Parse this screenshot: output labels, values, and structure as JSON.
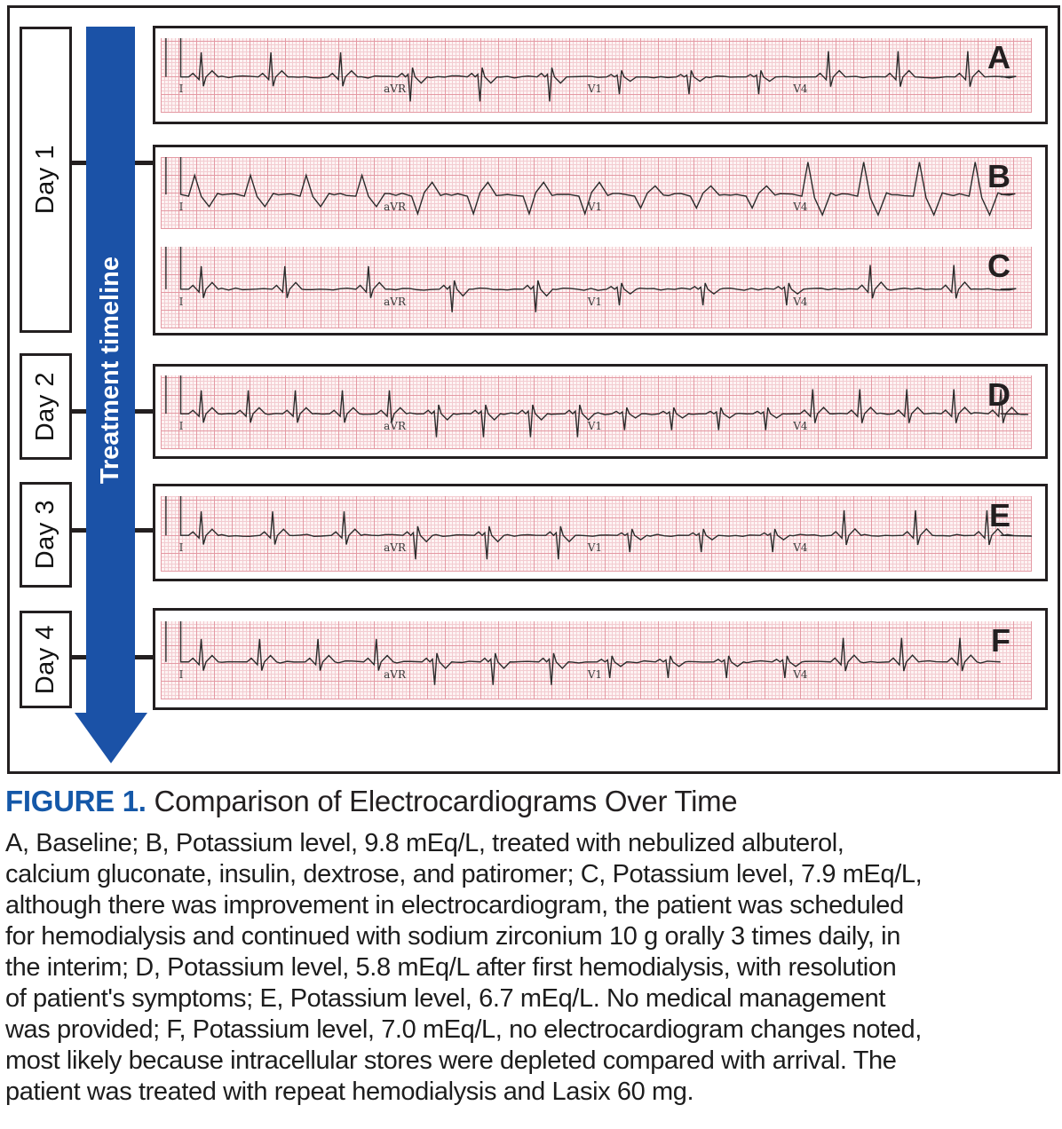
{
  "figure_caption": {
    "label": "FIGURE 1.",
    "title": "Comparison of Electrocardiograms Over Time",
    "body_lines": [
      "A, Baseline; B, Potassium level, 9.8 mEq/L, treated with nebulized albuterol,",
      "calcium gluconate, insulin, dextrose, and patiromer; C, Potassium level, 7.9 mEq/L,",
      "although there was improvement in electrocardiogram, the patient was scheduled",
      "for hemodialysis and continued with sodium zirconium 10 g orally 3 times daily, in",
      "the interim; D, Potassium level, 5.8 mEq/L after first hemodialysis, with resolution",
      "of patient's symptoms; E, Potassium level, 6.7 mEq/L. No medical management",
      "was provided; F, Potassium level, 7.0 mEq/L, no electrocardiogram changes noted,",
      "most likely because intracellular stores were depleted compared with arrival. The",
      "patient was treated with repeat hemodialysis and Lasix 60 mg."
    ]
  },
  "timeline": {
    "arrow_label": "Treatment timeline",
    "days": [
      {
        "label": "Day 1"
      },
      {
        "label": "Day 2"
      },
      {
        "label": "Day 3"
      },
      {
        "label": "Day 4"
      }
    ]
  },
  "ecg": {
    "lead_labels": [
      "I",
      "aVR",
      "V1",
      "V4"
    ],
    "strips": [
      {
        "letter": "A",
        "waveform": "narrow",
        "beat_spacing": 80,
        "amplitude": 28
      },
      {
        "letter": "B",
        "waveform": "wide",
        "beat_spacing": 64,
        "amplitude": 24
      },
      {
        "letter": "C",
        "waveform": "narrow",
        "beat_spacing": 96,
        "amplitude": 24
      },
      {
        "letter": "D",
        "waveform": "narrow",
        "beat_spacing": 54,
        "amplitude": 27
      },
      {
        "letter": "E",
        "waveform": "narrow",
        "beat_spacing": 82,
        "amplitude": 27
      },
      {
        "letter": "F",
        "waveform": "narrow",
        "beat_spacing": 67,
        "amplitude": 25
      }
    ]
  },
  "colors": {
    "arrow_blue": "#1b52a7",
    "caption_blue": "#1558a8",
    "paper_bg": "#fdf3f3",
    "grid_fine": "#f3ccd1",
    "grid_bold": "#e49aa4",
    "frame_black": "#231f20",
    "trace": "#2b2b2b"
  }
}
